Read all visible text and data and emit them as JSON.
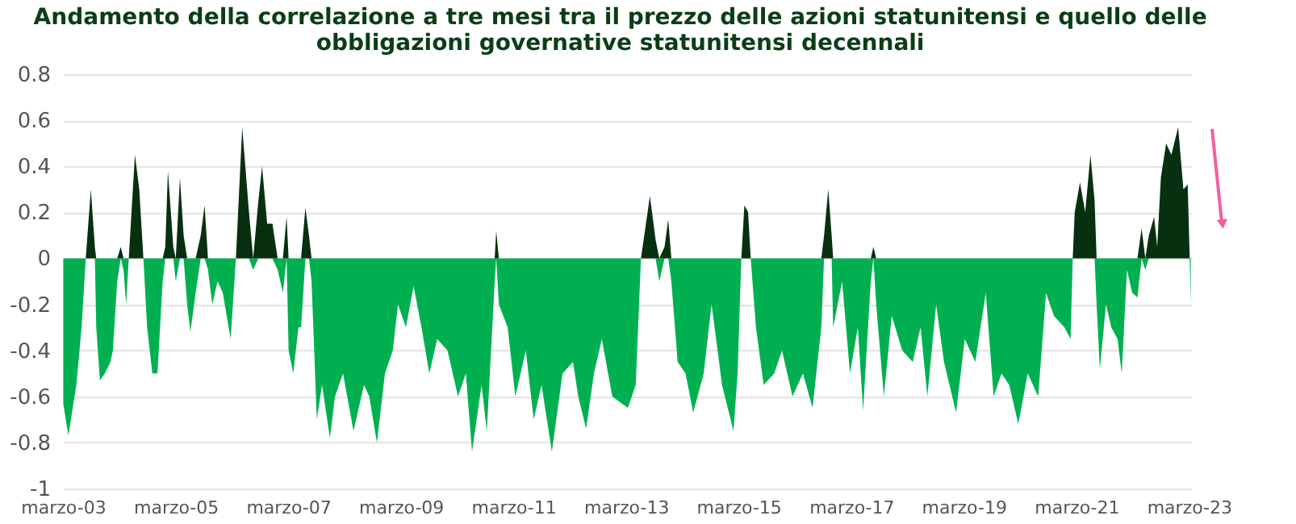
{
  "chart_data": {
    "type": "area",
    "title": "Andamento della correlazione a tre mesi tra il prezzo delle azioni statunitensi e quello delle obbligazioni governative statunitensi decennali",
    "x": [
      "2003-03-03",
      "2003-04-05",
      "2003-05-27",
      "2003-06-30",
      "2003-07-27",
      "2003-08-29",
      "2003-09-24",
      "2003-10-03",
      "2003-10-27",
      "2003-11-28",
      "2004-01-03",
      "2004-01-19",
      "2004-02-16",
      "2004-03-10",
      "2004-03-28",
      "2004-04-14",
      "2004-05-01",
      "2004-06-10",
      "2004-07-08",
      "2004-08-04",
      "2004-08-28",
      "2004-10-01",
      "2004-11-03",
      "2004-12-07",
      "2004-12-24",
      "2005-01-10",
      "2005-02-14",
      "2005-03-02",
      "2005-03-29",
      "2005-04-22",
      "2005-05-15",
      "2005-06-05",
      "2005-07-09",
      "2005-08-11",
      "2005-09-05",
      "2005-09-27",
      "2005-10-25",
      "2005-11-28",
      "2006-01-01",
      "2006-02-21",
      "2006-03-27",
      "2006-05-07",
      "2006-06-20",
      "2006-07-17",
      "2006-08-20",
      "2006-09-13",
      "2006-10-16",
      "2006-11-19",
      "2006-12-23",
      "2007-01-26",
      "2007-02-19",
      "2007-03-04",
      "2007-04-03",
      "2007-05-07",
      "2007-05-24",
      "2007-06-21",
      "2007-07-14",
      "2007-07-31",
      "2007-09-03",
      "2007-10-07",
      "2007-11-27",
      "2007-12-30",
      "2008-02-20",
      "2008-04-28",
      "2008-07-05",
      "2008-08-08",
      "2008-09-27",
      "2008-11-18",
      "2009-01-08",
      "2009-02-11",
      "2009-04-03",
      "2009-05-23",
      "2009-07-13",
      "2009-09-02",
      "2009-10-23",
      "2009-12-29",
      "2010-03-07",
      "2010-04-27",
      "2010-06-06",
      "2010-08-07",
      "2010-09-10",
      "2010-10-31",
      "2010-11-10",
      "2010-11-27",
      "2011-01-23",
      "2011-03-14",
      "2011-05-21",
      "2011-07-11",
      "2011-08-31",
      "2011-11-06",
      "2012-01-14",
      "2012-03-22",
      "2012-04-25",
      "2012-06-15",
      "2012-08-05",
      "2012-09-25",
      "2012-12-02",
      "2013-03-13",
      "2013-05-03",
      "2013-06-06",
      "2013-08-03",
      "2013-09-09",
      "2013-10-03",
      "2013-11-06",
      "2013-11-30",
      "2013-12-20",
      "2014-01-30",
      "2014-03-22",
      "2014-05-11",
      "2014-07-18",
      "2014-09-07",
      "2014-11-14",
      "2015-01-27",
      "2015-02-23",
      "2015-03-19",
      "2015-04-08",
      "2015-05-02",
      "2015-05-19",
      "2015-06-22",
      "2015-08-11",
      "2015-10-18",
      "2015-12-08",
      "2016-02-14",
      "2016-04-22",
      "2016-06-23",
      "2016-08-19",
      "2016-09-06",
      "2016-10-03",
      "2016-10-25",
      "2016-11-04",
      "2017-01-01",
      "2017-02-21",
      "2017-04-13",
      "2017-05-17",
      "2017-07-06",
      "2017-07-23",
      "2017-08-10",
      "2017-09-29",
      "2017-11-19",
      "2018-01-26",
      "2018-04-04",
      "2018-05-25",
      "2018-07-08",
      "2018-09-03",
      "2018-10-24",
      "2019-01-10",
      "2019-03-08",
      "2019-05-15",
      "2019-07-22",
      "2019-09-11",
      "2019-11-01",
      "2019-12-21",
      "2020-02-18",
      "2020-04-19",
      "2020-06-26",
      "2020-08-16",
      "2020-10-06",
      "2020-12-13",
      "2021-01-22",
      "2021-02-05",
      "2021-02-18",
      "2021-03-24",
      "2021-04-27",
      "2021-05-31",
      "2021-06-27",
      "2021-07-10",
      "2021-07-31",
      "2021-09-09",
      "2021-10-13",
      "2021-11-23",
      "2021-12-20",
      "2022-01-23",
      "2022-02-26",
      "2022-04-01",
      "2022-04-28",
      "2022-05-22",
      "2022-06-14",
      "2022-07-18",
      "2022-08-07",
      "2022-08-31",
      "2022-10-04",
      "2022-11-07",
      "2022-12-21",
      "2023-01-24",
      "2023-02-21",
      "2023-03-06",
      "2023-03-13"
    ],
    "series": [
      {
        "color": "#00b050",
        "values": [
          -0.63,
          -0.77,
          -0.55,
          -0.3,
          0,
          0,
          0,
          -0.3,
          -0.53,
          -0.5,
          -0.45,
          -0.4,
          -0.1,
          0,
          -0.05,
          -0.2,
          0,
          0,
          0,
          0,
          -0.3,
          -0.5,
          -0.5,
          -0.1,
          0,
          0,
          0,
          -0.1,
          0,
          0,
          -0.2,
          -0.32,
          -0.15,
          0,
          0,
          -0.05,
          -0.2,
          -0.1,
          -0.15,
          -0.35,
          0,
          0,
          0,
          -0.05,
          0,
          0,
          0,
          0,
          -0.05,
          -0.15,
          0,
          -0.4,
          -0.5,
          -0.3,
          -0.3,
          0,
          0,
          -0.1,
          -0.7,
          -0.55,
          -0.78,
          -0.6,
          -0.5,
          -0.75,
          -0.55,
          -0.6,
          -0.8,
          -0.5,
          -0.4,
          -0.2,
          -0.3,
          -0.12,
          -0.3,
          -0.5,
          -0.35,
          -0.4,
          -0.6,
          -0.5,
          -0.84,
          -0.55,
          -0.75,
          -0.1,
          0,
          -0.2,
          -0.3,
          -0.6,
          -0.4,
          -0.7,
          -0.55,
          -0.84,
          -0.5,
          -0.45,
          -0.6,
          -0.74,
          -0.5,
          -0.35,
          -0.6,
          -0.65,
          -0.55,
          0,
          0,
          0,
          -0.1,
          0,
          0,
          -0.1,
          -0.45,
          -0.5,
          -0.67,
          -0.5,
          -0.2,
          -0.55,
          -0.75,
          -0.5,
          0,
          0,
          0,
          0,
          -0.3,
          -0.55,
          -0.5,
          -0.4,
          -0.6,
          -0.5,
          -0.65,
          -0.3,
          0,
          0,
          0,
          -0.3,
          -0.1,
          -0.5,
          -0.3,
          -0.66,
          -0.1,
          0,
          -0.2,
          -0.6,
          -0.25,
          -0.4,
          -0.45,
          -0.3,
          -0.6,
          -0.2,
          -0.45,
          -0.67,
          -0.35,
          -0.45,
          -0.15,
          -0.6,
          -0.5,
          -0.55,
          -0.72,
          -0.5,
          -0.6,
          -0.15,
          -0.25,
          -0.3,
          -0.35,
          0,
          0,
          0,
          0,
          0,
          0,
          -0.2,
          -0.48,
          -0.2,
          -0.3,
          -0.35,
          -0.5,
          -0.05,
          -0.15,
          -0.17,
          0,
          -0.05,
          0,
          0,
          0,
          0,
          0,
          0,
          0,
          0,
          0,
          0,
          -0.2
        ]
      },
      {
        "color": "#06300f",
        "values": [
          0,
          0,
          0,
          0,
          0,
          0.3,
          0.05,
          0,
          0,
          0,
          0,
          0,
          0,
          0.05,
          0,
          0,
          0,
          0.45,
          0.3,
          0,
          0,
          0,
          0,
          0,
          0.05,
          0.38,
          0.05,
          0,
          0.35,
          0.1,
          0,
          0,
          0,
          0.1,
          0.23,
          0,
          0,
          0,
          0,
          0,
          0,
          0.57,
          0.2,
          0,
          0.25,
          0.4,
          0.15,
          0.15,
          0,
          0,
          0.18,
          0,
          0,
          0,
          0,
          0.22,
          0.1,
          0,
          0,
          0,
          0,
          0,
          0,
          0,
          0,
          0,
          0,
          0,
          0,
          0,
          0,
          0,
          0,
          0,
          0,
          0,
          0,
          0,
          0,
          0,
          0,
          0,
          0.12,
          0,
          0,
          0,
          0,
          0,
          0,
          0,
          0,
          0,
          0,
          0,
          0,
          0,
          0,
          0,
          0,
          0,
          0.27,
          0.08,
          0,
          0.05,
          0.17,
          0,
          0,
          0,
          0,
          0,
          0,
          0,
          0,
          0,
          0,
          0.23,
          0.2,
          0,
          0,
          0,
          0,
          0,
          0,
          0,
          0,
          0,
          0.1,
          0.3,
          0.1,
          0,
          0,
          0,
          0,
          0,
          0,
          0.05,
          0,
          0,
          0,
          0,
          0,
          0,
          0,
          0,
          0,
          0,
          0,
          0,
          0,
          0,
          0,
          0,
          0,
          0,
          0,
          0,
          0,
          0,
          0,
          0,
          0.2,
          0.33,
          0.2,
          0.45,
          0.25,
          0,
          0,
          0,
          0,
          0,
          0,
          0,
          0,
          0,
          0.13,
          0,
          0.1,
          0.18,
          0.05,
          0.35,
          0.5,
          0.45,
          0.57,
          0.3,
          0.32,
          0,
          0
        ]
      }
    ],
    "ylim": [
      -1,
      0.8
    ],
    "yticks": [
      -1,
      -0.8,
      -0.6,
      -0.4,
      -0.2,
      0,
      0.2,
      0.4,
      0.6,
      0.8
    ],
    "xlim": [
      "2003-03-01",
      "2023-03-15"
    ],
    "xticks": [
      {
        "value": "2003-03-01",
        "label": "marzo-03"
      },
      {
        "value": "2005-03-01",
        "label": "marzo-05"
      },
      {
        "value": "2007-03-01",
        "label": "marzo-07"
      },
      {
        "value": "2009-03-01",
        "label": "marzo-09"
      },
      {
        "value": "2011-03-01",
        "label": "marzo-11"
      },
      {
        "value": "2013-03-01",
        "label": "marzo-13"
      },
      {
        "value": "2015-03-01",
        "label": "marzo-15"
      },
      {
        "value": "2017-03-01",
        "label": "marzo-17"
      },
      {
        "value": "2019-03-01",
        "label": "marzo-19"
      },
      {
        "value": "2021-03-01",
        "label": "marzo-21"
      },
      {
        "value": "2023-03-01",
        "label": "marzo-23"
      }
    ],
    "grid": "y"
  }
}
